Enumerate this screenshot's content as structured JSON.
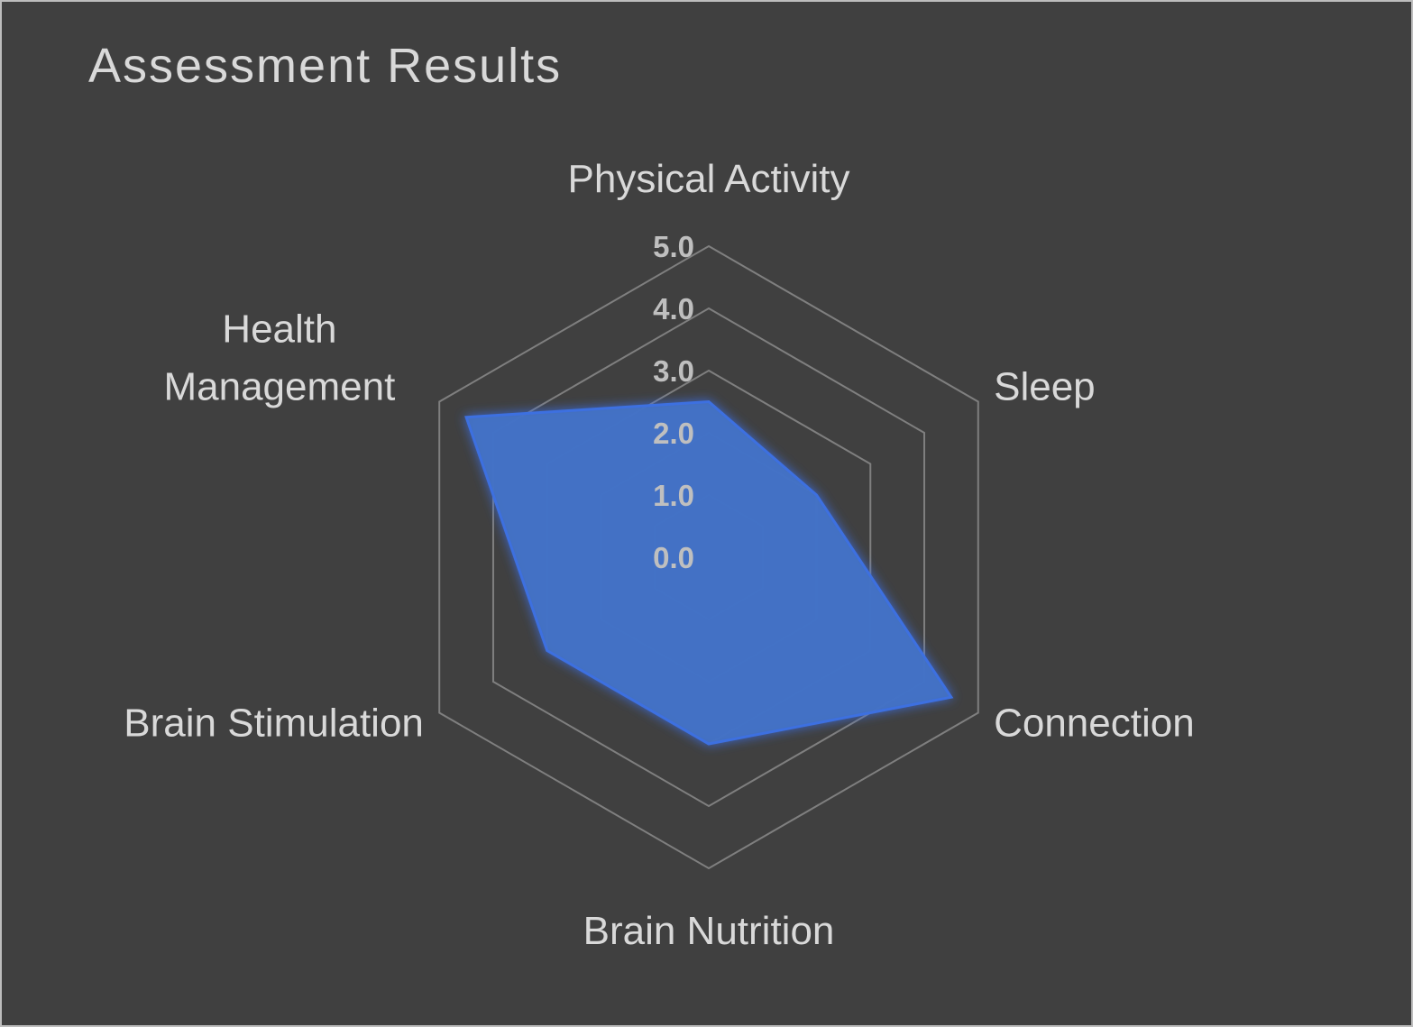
{
  "chart_data": {
    "type": "radar",
    "title": "Assessment Results",
    "categories": [
      "Physical Activity",
      "Sleep",
      "Connection",
      "Brain Nutrition",
      "Brain Stimulation",
      "Health Management"
    ],
    "category_lines": [
      [
        "Physical Activity"
      ],
      [
        "Sleep"
      ],
      [
        "Connection"
      ],
      [
        "Brain Nutrition"
      ],
      [
        "Brain Stimulation"
      ],
      [
        "Health",
        "Management"
      ]
    ],
    "series": [
      {
        "values": [
          2.5,
          2.0,
          4.5,
          3.0,
          3.0,
          4.5
        ],
        "color": "#4472c4"
      }
    ],
    "rlim": [
      0,
      5
    ],
    "ticks": [
      "0.0",
      "1.0",
      "2.0",
      "3.0",
      "4.0",
      "5.0"
    ],
    "grid": true,
    "legend": "none"
  }
}
